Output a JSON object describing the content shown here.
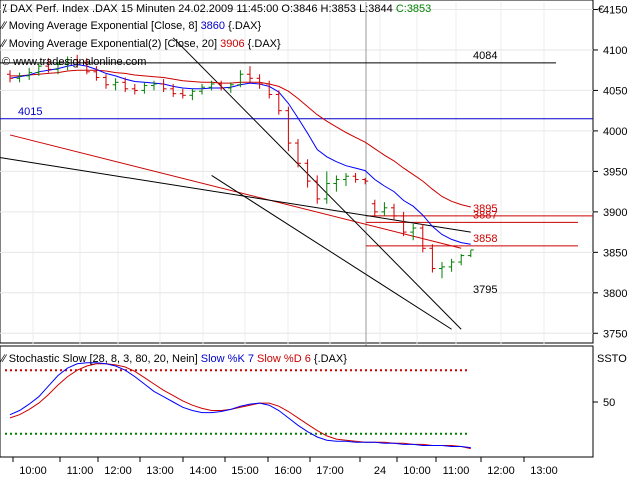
{
  "header": {
    "symbol_line": {
      "name": "DAX Perf. Index",
      "instrument": ".DAX",
      "interval": "15 Minuten",
      "datetime": "24.02.2009 11:45:00",
      "open": "O:3846",
      "high": "H:3853",
      "low": "L:3844",
      "close": "C:3853"
    },
    "ema8_label": "Moving Average Exponential [Close, 8]",
    "ema8_value": "3860",
    "ema8_source": "{.DAX}",
    "ema20_label": "Moving Average Exponential(2) [Close, 20]",
    "ema20_value": "3906",
    "ema20_source": "{.DAX}",
    "watermark": "www.tradesignalonline.com"
  },
  "currency_label": "€",
  "sto_header": {
    "label": "Stochastic Slow [28, 8, 3, 80, 20, Nein]",
    "k_label": "Slow %K 7",
    "d_label": "Slow %D 6",
    "source": "{.DAX}",
    "axis_label": "SSTO"
  },
  "colors": {
    "ema8": "#0000ff",
    "ema20": "#cc0000",
    "bullish": "#008000",
    "bearish": "#cc0000",
    "line_4015": "#0000cc",
    "overbought": "#cc0000",
    "oversold": "#008000"
  },
  "chart_data": [
    {
      "type": "line",
      "title": "DAX Perf. Index",
      "ylim": [
        3738,
        4158
      ],
      "y_ticks": [
        3750,
        3800,
        3850,
        3900,
        3950,
        4000,
        4050,
        4100,
        4150
      ],
      "x_labels": [
        "10:00",
        "11:00",
        "12:00",
        "13:00",
        "14:00",
        "15:00",
        "16:00",
        "17:00",
        "24",
        "10:00",
        "11:00",
        "12:00",
        "13:00"
      ],
      "price_bars": [
        {
          "o": 4070,
          "h": 4075,
          "l": 4060,
          "c": 4065
        },
        {
          "o": 4065,
          "h": 4072,
          "l": 4060,
          "c": 4068
        },
        {
          "o": 4068,
          "h": 4078,
          "l": 4063,
          "c": 4072
        },
        {
          "o": 4072,
          "h": 4085,
          "l": 4068,
          "c": 4080
        },
        {
          "o": 4080,
          "h": 4090,
          "l": 4072,
          "c": 4076
        },
        {
          "o": 4076,
          "h": 4085,
          "l": 4070,
          "c": 4082
        },
        {
          "o": 4082,
          "h": 4092,
          "l": 4075,
          "c": 4088
        },
        {
          "o": 4088,
          "h": 4094,
          "l": 4078,
          "c": 4085
        },
        {
          "o": 4085,
          "h": 4090,
          "l": 4070,
          "c": 4073
        },
        {
          "o": 4073,
          "h": 4080,
          "l": 4062,
          "c": 4066
        },
        {
          "o": 4066,
          "h": 4070,
          "l": 4052,
          "c": 4057
        },
        {
          "o": 4057,
          "h": 4065,
          "l": 4050,
          "c": 4060
        },
        {
          "o": 4060,
          "h": 4066,
          "l": 4048,
          "c": 4052
        },
        {
          "o": 4052,
          "h": 4058,
          "l": 4045,
          "c": 4050
        },
        {
          "o": 4050,
          "h": 4060,
          "l": 4046,
          "c": 4056
        },
        {
          "o": 4056,
          "h": 4062,
          "l": 4050,
          "c": 4058
        },
        {
          "o": 4058,
          "h": 4064,
          "l": 4048,
          "c": 4052
        },
        {
          "o": 4052,
          "h": 4058,
          "l": 4042,
          "c": 4046
        },
        {
          "o": 4046,
          "h": 4052,
          "l": 4040,
          "c": 4044
        },
        {
          "o": 4044,
          "h": 4052,
          "l": 4038,
          "c": 4049
        },
        {
          "o": 4049,
          "h": 4058,
          "l": 4045,
          "c": 4054
        },
        {
          "o": 4054,
          "h": 4062,
          "l": 4050,
          "c": 4058
        },
        {
          "o": 4058,
          "h": 4062,
          "l": 4050,
          "c": 4053
        },
        {
          "o": 4053,
          "h": 4060,
          "l": 4047,
          "c": 4057
        },
        {
          "o": 4057,
          "h": 4075,
          "l": 4054,
          "c": 4070
        },
        {
          "o": 4070,
          "h": 4080,
          "l": 4060,
          "c": 4065
        },
        {
          "o": 4065,
          "h": 4070,
          "l": 4052,
          "c": 4058
        },
        {
          "o": 4058,
          "h": 4062,
          "l": 4040,
          "c": 4045
        },
        {
          "o": 4045,
          "h": 4050,
          "l": 4020,
          "c": 4025
        },
        {
          "o": 4025,
          "h": 4030,
          "l": 3975,
          "c": 3985
        },
        {
          "o": 3985,
          "h": 3990,
          "l": 3955,
          "c": 3960
        },
        {
          "o": 3960,
          "h": 3965,
          "l": 3930,
          "c": 3938
        },
        {
          "o": 3938,
          "h": 3945,
          "l": 3910,
          "c": 3916
        },
        {
          "o": 3916,
          "h": 3950,
          "l": 3910,
          "c": 3935
        },
        {
          "o": 3935,
          "h": 3945,
          "l": 3925,
          "c": 3940
        },
        {
          "o": 3940,
          "h": 3948,
          "l": 3932,
          "c": 3944
        },
        {
          "o": 3944,
          "h": 3948,
          "l": 3936,
          "c": 3940
        },
        {
          "o": 3940,
          "h": 3942,
          "l": 3934,
          "c": 3938
        },
        {
          "o": 3910,
          "h": 3915,
          "l": 3895,
          "c": 3900
        },
        {
          "o": 3900,
          "h": 3912,
          "l": 3895,
          "c": 3905
        },
        {
          "o": 3905,
          "h": 3910,
          "l": 3890,
          "c": 3895
        },
        {
          "o": 3895,
          "h": 3900,
          "l": 3870,
          "c": 3875
        },
        {
          "o": 3875,
          "h": 3885,
          "l": 3865,
          "c": 3880
        },
        {
          "o": 3880,
          "h": 3885,
          "l": 3850,
          "c": 3855
        },
        {
          "o": 3855,
          "h": 3860,
          "l": 3825,
          "c": 3830
        },
        {
          "o": 3830,
          "h": 3838,
          "l": 3818,
          "c": 3832
        },
        {
          "o": 3832,
          "h": 3842,
          "l": 3826,
          "c": 3838
        },
        {
          "o": 3838,
          "h": 3848,
          "l": 3834,
          "c": 3846
        },
        {
          "o": 3846,
          "h": 3853,
          "l": 3844,
          "c": 3853
        }
      ],
      "ema8": [
        4065,
        4067,
        4069,
        4073,
        4075,
        4077,
        4080,
        4082,
        4080,
        4076,
        4071,
        4068,
        4064,
        4061,
        4060,
        4059,
        4058,
        4055,
        4053,
        4052,
        4052,
        4053,
        4053,
        4054,
        4057,
        4059,
        4058,
        4055,
        4048,
        4034,
        4016,
        3997,
        3977,
        3968,
        3962,
        3957,
        3954,
        3951,
        3940,
        3932,
        3925,
        3914,
        3907,
        3896,
        3882,
        3872,
        3866,
        3862,
        3860
      ],
      "ema20": [
        4068,
        4068,
        4069,
        4070,
        4071,
        4072,
        4074,
        4075,
        4075,
        4075,
        4074,
        4072,
        4071,
        4069,
        4068,
        4067,
        4066,
        4064,
        4062,
        4061,
        4060,
        4060,
        4059,
        4059,
        4060,
        4060,
        4060,
        4058,
        4055,
        4049,
        4040,
        4030,
        4020,
        4012,
        4005,
        3998,
        3992,
        3986,
        3978,
        3970,
        3963,
        3954,
        3946,
        3938,
        3928,
        3919,
        3913,
        3909,
        3906
      ],
      "horizontal_lines": [
        {
          "value": 4084,
          "label": "4084",
          "color": "#000000"
        },
        {
          "value": 4015,
          "label": "4015",
          "color": "#0000cc"
        },
        {
          "value": 3895,
          "label": "3895",
          "color": "#cc0000"
        },
        {
          "value": 3887,
          "label": "3887",
          "color": "#cc0000"
        },
        {
          "value": 3858,
          "label": "3858",
          "color": "#cc0000"
        },
        {
          "value": 3795,
          "label": "3795",
          "color": "#000000"
        }
      ],
      "trendlines": [
        {
          "name": "upper-downtrend",
          "from": [
            0,
            3995
          ],
          "to": [
            47,
            3855
          ],
          "color": "#cc0000"
        },
        {
          "name": "lower-long-trend",
          "from": [
            -1,
            3967
          ],
          "to": [
            48,
            3875
          ],
          "color": "#000000"
        },
        {
          "name": "steep-resistance",
          "from": [
            17,
            4115
          ],
          "to": [
            47,
            3755
          ],
          "color": "#000000"
        },
        {
          "name": "channel-support",
          "from": [
            21,
            3945
          ],
          "to": [
            46,
            3755
          ],
          "color": "#000000"
        }
      ]
    },
    {
      "type": "line",
      "title": "Stochastic Slow [28, 8, 3, 80, 20, Nein]",
      "ylim": [
        0,
        100
      ],
      "y_ticks": [
        50
      ],
      "overbought": 80,
      "oversold": 20,
      "series": [
        {
          "name": "Slow %K 7",
          "color": "#0000ff",
          "values": [
            38,
            42,
            48,
            55,
            65,
            75,
            82,
            86,
            87,
            87,
            86,
            84,
            80,
            74,
            67,
            60,
            55,
            50,
            45,
            42,
            40,
            40,
            41,
            43,
            46,
            48,
            49,
            47,
            42,
            35,
            28,
            22,
            17,
            14,
            13,
            13,
            12,
            12,
            12,
            11,
            11,
            10,
            10,
            9,
            9,
            9,
            8,
            8,
            7
          ]
        },
        {
          "name": "Slow %D 6",
          "color": "#cc0000",
          "values": [
            35,
            38,
            43,
            49,
            57,
            66,
            74,
            80,
            84,
            86,
            86,
            85,
            83,
            79,
            73,
            67,
            61,
            56,
            51,
            47,
            44,
            42,
            42,
            43,
            45,
            47,
            49,
            49,
            46,
            41,
            35,
            29,
            23,
            18,
            15,
            14,
            13,
            12,
            12,
            12,
            11,
            11,
            10,
            10,
            9,
            9,
            9,
            8,
            6
          ]
        }
      ]
    }
  ]
}
